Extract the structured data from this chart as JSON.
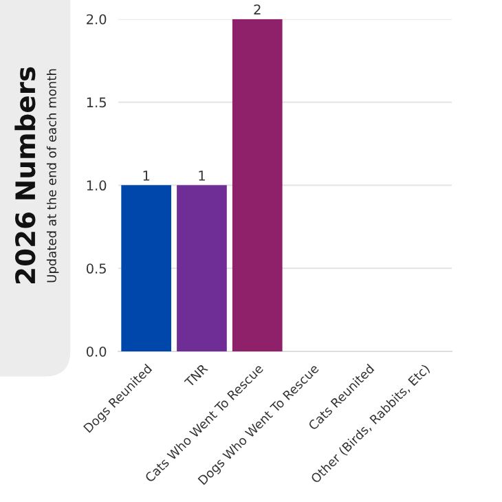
{
  "chart_data": {
    "type": "bar",
    "title": "2026 Numbers",
    "subtitle": "Updated at the end of each month",
    "categories": [
      "Dogs Reunited",
      "TNR",
      "Cats Who Went To Rescue",
      "Dogs Who Went To Rescue",
      "Cats Reunited",
      "Other (Birds, Rabbits, Etc)"
    ],
    "values": [
      1,
      1,
      2,
      0,
      0,
      0
    ],
    "colors": [
      "#0047ab",
      "#6f2d96",
      "#8e2169",
      null,
      null,
      null
    ],
    "value_labels": [
      "1",
      "1",
      "2",
      null,
      null,
      null
    ],
    "ylim": [
      0,
      2.0
    ],
    "yticks": [
      {
        "value": 0,
        "label": "0.0"
      },
      {
        "value": 0.5,
        "label": "0.5"
      },
      {
        "value": 1,
        "label": "1.0"
      },
      {
        "value": 1.5,
        "label": "1.5"
      },
      {
        "value": 2,
        "label": "2.0"
      }
    ],
    "grid": "y",
    "legend": false
  }
}
